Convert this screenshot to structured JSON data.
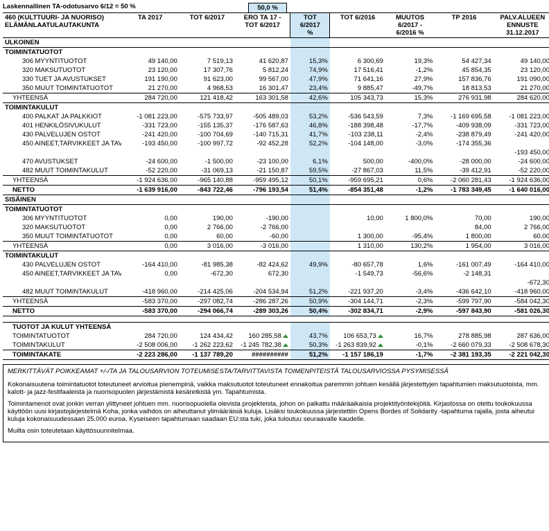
{
  "colors": {
    "highlight": "#cfe7f5",
    "triangle": "#2e8b2e",
    "background": "#ffffff",
    "text": "#000000"
  },
  "topLabel": "Laskennallinen TA-odotusarvo 6/12 = 50 %",
  "topBadge": "50,0 %",
  "header": {
    "left1": "460 (KULTTUURI- JA NUORISO)",
    "left2": "ELÄMÄNLAATULAUTAKUNTA",
    "cols": {
      "ta2017": "TA 2017",
      "tot6_2017": "TOT 6/2017",
      "ero": "ERO TA 17 - TOT 6/2017",
      "tot_pct": "TOT 6/2017 %",
      "tot6_2016": "TOT 6/2016",
      "muutos": "MUUTOS 6/2017 - 6/2016 %",
      "tp2016": "TP 2016",
      "ennuste": "PALV.ALUEEN ENNUSTE 31.12.2017"
    }
  },
  "sections": {
    "ulkoinen": "ULKOINEN",
    "sisainen": "SISÄINEN",
    "tuotot": "TOIMINTATUOTOT",
    "kulut": "TOIMINTAKULUT",
    "yhteensa": "YHTEENSÄ",
    "netto": "NETTO",
    "tky": "TUOTOT JA KULUT YHTEENSÄ",
    "toimintakate": "TOIMINTAKATE"
  },
  "rows": {
    "u_t_306": {
      "label": "306 MYYNTITUOTOT",
      "ta": "49 140,00",
      "tot17": "7 519,13",
      "ero": "41 620,87",
      "pct": "15,3%",
      "tot16": "6 300,69",
      "m": "19,3%",
      "tp": "54 427,34",
      "en": "49 140,00"
    },
    "u_t_320": {
      "label": "320 MAKSUTUOTOT",
      "ta": "23 120,00",
      "tot17": "17 307,76",
      "ero": "5 812,24",
      "pct": "74,9%",
      "tot16": "17 516,41",
      "m": "-1,2%",
      "tp": "45 854,35",
      "en": "23 120,00"
    },
    "u_t_330": {
      "label": "330 TUET JA AVUSTUKSET",
      "ta": "191 190,00",
      "tot17": "91 623,00",
      "ero": "99 567,00",
      "pct": "47,9%",
      "tot16": "71 641,16",
      "m": "27,9%",
      "tp": "157 836,76",
      "en": "191 090,00"
    },
    "u_t_350": {
      "label": "350 MUUT TOIMINTATUOTOT",
      "ta": "21 270,00",
      "tot17": "4 968,53",
      "ero": "16 301,47",
      "pct": "23,4%",
      "tot16": "9 885,47",
      "m": "-49,7%",
      "tp": "18 813,53",
      "en": "21 270,00"
    },
    "u_t_sum": {
      "ta": "284 720,00",
      "tot17": "121 418,42",
      "ero": "163 301,58",
      "pct": "42,6%",
      "tot16": "105 343,73",
      "m": "15,3%",
      "tp": "276 931,98",
      "en": "284 620,00"
    },
    "u_k_400": {
      "label": "400 PALKAT JA PALKKIOT",
      "ta": "-1 081 223,00",
      "tot17": "-575 733,97",
      "ero": "-505 489,03",
      "pct": "53,2%",
      "tot16": "-536 543,59",
      "m": "7,3%",
      "tp": "-1 169 695,58",
      "en": "-1 081 223,00"
    },
    "u_k_401": {
      "label": "401 HENKILÖSIVUKULUT",
      "ta": "-331 723,00",
      "tot17": "-155 135,37",
      "ero": "-176 587,63",
      "pct": "46,8%",
      "tot16": "-188 398,48",
      "m": "-17,7%",
      "tp": "-409 938,09",
      "en": "-331 723,00"
    },
    "u_k_430": {
      "label": "430 PALVELUJEN OSTOT",
      "ta": "-241 420,00",
      "tot17": "-100 704,69",
      "ero": "-140 715,31",
      "pct": "41,7%",
      "tot16": "-103 238,11",
      "m": "-2,4%",
      "tp": "-238 879,49",
      "en": "-241 420,00"
    },
    "u_k_450": {
      "label": "450 AINEET,TARVIKKEET JA TAVARAT",
      "ta": "-193 450,00",
      "tot17": "-100 997,72",
      "ero": "-92 452,28",
      "pct": "52,2%",
      "tot16": "-104 148,00",
      "m": "-3,0%",
      "tp": "-174 355,36",
      "en": ""
    },
    "u_k_450b": {
      "en": "-193 450,00"
    },
    "u_k_470": {
      "label": "470 AVUSTUKSET",
      "ta": "-24 600,00",
      "tot17": "-1 500,00",
      "ero": "-23 100,00",
      "pct": "6,1%",
      "tot16": "500,00",
      "m": "-400,0%",
      "tp": "-28 000,00",
      "en": "-24 600,00"
    },
    "u_k_482": {
      "label": "482 MUUT TOIMINTAKULUT",
      "ta": "-52 220,00",
      "tot17": "-31 069,13",
      "ero": "-21 150,87",
      "pct": "59,5%",
      "tot16": "-27 867,03",
      "m": "11,5%",
      "tp": "-39 412,91",
      "en": "-52 220,00"
    },
    "u_k_sum": {
      "ta": "-1 924 636,00",
      "tot17": "-965 140,88",
      "ero": "-959 495,12",
      "pct": "50,1%",
      "tot16": "-959 695,21",
      "m": "0,6%",
      "tp": "-2 060 281,43",
      "en": "-1 924 636,00"
    },
    "u_netto": {
      "ta": "-1 639 916,00",
      "tot17": "-843 722,46",
      "ero": "-796 193,54",
      "pct": "51,4%",
      "tot16": "-854 351,48",
      "m": "-1,2%",
      "tp": "-1 783 349,45",
      "en": "-1 640 016,00"
    },
    "s_t_306": {
      "label": "306 MYYNTITUOTOT",
      "ta": "0,00",
      "tot17": "190,00",
      "ero": "-190,00",
      "pct": "",
      "tot16": "10,00",
      "m": "1 800,0%",
      "tp": "70,00",
      "en": "190,00"
    },
    "s_t_320": {
      "label": "320 MAKSUTUOTOT",
      "ta": "0,00",
      "tot17": "2 766,00",
      "ero": "-2 766,00",
      "pct": "",
      "tot16": "",
      "m": "",
      "tp": "84,00",
      "en": "2 766,00"
    },
    "s_t_350": {
      "label": "350 MUUT TOIMINTATUOTOT",
      "ta": "0,00",
      "tot17": "60,00",
      "ero": "-60,00",
      "pct": "",
      "tot16": "1 300,00",
      "m": "-95,4%",
      "tp": "1 800,00",
      "en": "60,00"
    },
    "s_t_sum": {
      "ta": "0,00",
      "tot17": "3 016,00",
      "ero": "-3 016,00",
      "pct": "",
      "tot16": "1 310,00",
      "m": "130,2%",
      "tp": "1 954,00",
      "en": "3 016,00"
    },
    "s_k_430": {
      "label": "430 PALVELUJEN OSTOT",
      "ta": "-164 410,00",
      "tot17": "-81 985,38",
      "ero": "-82 424,62",
      "pct": "49,9%",
      "tot16": "-80 657,78",
      "m": "1,6%",
      "tp": "-161 007,49",
      "en": "-164 410,00"
    },
    "s_k_450": {
      "label": "450 AINEET,TARVIKKEET JA TAVARAT",
      "ta": "0,00",
      "tot17": "-672,30",
      "ero": "672,30",
      "pct": "",
      "tot16": "-1 549,73",
      "m": "-56,6%",
      "tp": "-2 148,31",
      "en": ""
    },
    "s_k_450b": {
      "en": "-672,30"
    },
    "s_k_482": {
      "label": "482 MUUT TOIMINTAKULUT",
      "ta": "-418 960,00",
      "tot17": "-214 425,06",
      "ero": "-204 534,94",
      "pct": "51,2%",
      "tot16": "-221 937,20",
      "m": "-3,4%",
      "tp": "-436 642,10",
      "en": "-418 960,00"
    },
    "s_k_sum": {
      "ta": "-583 370,00",
      "tot17": "-297 082,74",
      "ero": "-286 287,26",
      "pct": "50,9%",
      "tot16": "-304 144,71",
      "m": "-2,3%",
      "tp": "-599 797,90",
      "en": "-584 042,30"
    },
    "s_netto": {
      "ta": "-583 370,00",
      "tot17": "-294 066,74",
      "ero": "-289 303,26",
      "pct": "50,4%",
      "tot16": "-302 834,71",
      "m": "-2,9%",
      "tp": "-597 843,90",
      "en": "-581 026,30"
    },
    "tot_tuotot": {
      "label": "TOIMINTATUOTOT",
      "ta": "284 720,00",
      "tot17": "124 434,42",
      "ero": "160 285,58",
      "pct": "43,7%",
      "tot16": "106 653,73",
      "m": "16,7%",
      "tp": "278 885,98",
      "en": "287 636,00"
    },
    "tot_kulut": {
      "label": "TOIMINTAKULUT",
      "ta": "-2 508 006,00",
      "tot17": "-1 262 223,62",
      "ero": "-1 245 782,38",
      "pct": "50,3%",
      "tot16": "-1 263 839,92",
      "m": "-0,1%",
      "tp": "-2 660 079,33",
      "en": "-2 508 678,30"
    },
    "tot_kate": {
      "ta": "-2 223 286,00",
      "tot17": "-1 137 789,20",
      "ero": "##########",
      "pct": "51,2%",
      "tot16": "-1 157 186,19",
      "m": "-1,7%",
      "tp": "-2 381 193,35",
      "en": "-2 221 042,30"
    }
  },
  "footnote": {
    "title": "MERKITTÄVÄT POIKKEAMAT +/-/TA JA TALOUSARVION TOTEUMISESTA/TARVITTAVISTA TOIMENPITEISTÄ TALOUSARVIOSSA PYSYMISESSÄ",
    "p1": "Kokonaisuutena toimintatuotot toteutuneet arvioitua pienempinä, vaikka maksutuotot toteutuneet ennakoitua paremmin johtuen kesällä järjestettyjen tapahtumien maksutuotoista, mm. kalott- ja jazz-festifaaleista ja nuorisopuolen järjestämistä kesäretkistä ym. Tapahtumista.",
    "p2": "Toimintamenot ovat jonkin verran ylittyneet johtuen mm. nuorisopuolella olevista projekteista, johon on palkattu määräaikaisia projektityöntekijöitä. Kirjastossa on otettu toukokuussa käyttöön uusi kirjastojärjestelmä Koha, jonka vaihdos on aiheuttanut ylimääräisiä kuluja. Lisäksi toukokuussa järjestettiin Opens Bordes of Solidarity -tapahtuma rajalla, josta aiheutui kuluja kokonaisuudessaan 25.000 euroa. Kyseiseen tapahtumaan saadaan EU:sta tuki, joka tuloutuu seuraavalle kaudelle.",
    "p3": "Muilta osin toteutetaan käyttösuunnitelmaa."
  }
}
